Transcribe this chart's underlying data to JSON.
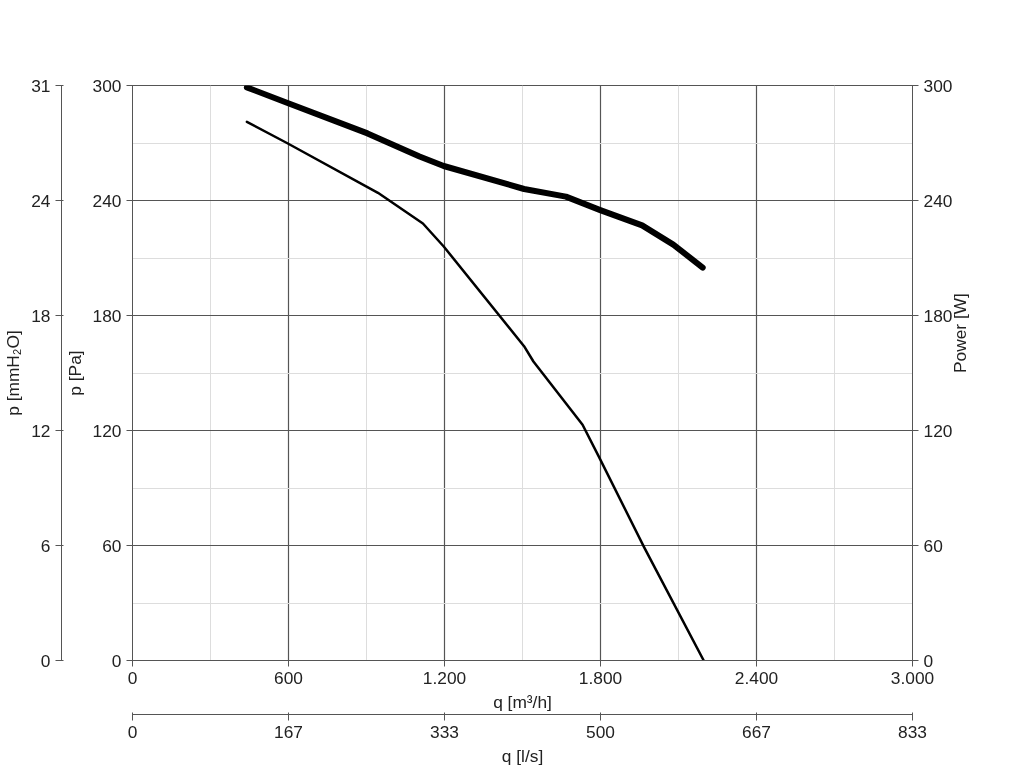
{
  "chart_data": {
    "type": "line",
    "xlabel": "q [m³/h]",
    "ylabel": "p [Pa]",
    "y2label": "Power [W]",
    "y3label": "p [mmH₂O]",
    "x2label": "q [l/s]",
    "xlim": [
      0,
      3000
    ],
    "xticks": [
      0,
      600,
      {
        "value": 1200,
        "label": "1.200"
      },
      {
        "value": 1800,
        "label": "1.800"
      },
      {
        "value": 2400,
        "label": "2.400"
      },
      {
        "value": 3000,
        "label": "3.000"
      }
    ],
    "ylim": [
      0,
      300
    ],
    "yticks": [
      0,
      60,
      120,
      180,
      240,
      300
    ],
    "y2lim": [
      0,
      300
    ],
    "y2ticks": [
      0,
      60,
      120,
      180,
      240,
      300
    ],
    "y3lim": [
      0,
      30.6
    ],
    "y3ticks": [
      0,
      {
        "value": 6.12,
        "label": "6"
      },
      {
        "value": 12.24,
        "label": "12"
      },
      {
        "value": 18.36,
        "label": "18"
      },
      {
        "value": 24.48,
        "label": "24"
      },
      {
        "value": 30.6,
        "label": "31"
      }
    ],
    "x2lim": [
      0,
      833.3
    ],
    "x2ticks": [
      0,
      {
        "value": 166.7,
        "label": "167"
      },
      {
        "value": 333.3,
        "label": "333"
      },
      {
        "value": 500,
        "label": "500"
      },
      {
        "value": 666.7,
        "label": "667"
      },
      {
        "value": 833.3,
        "label": "833"
      }
    ],
    "grid": true,
    "marker": "none",
    "line_style": "solid",
    "series": [
      {
        "color": "#000000",
        "x": [
          440,
          594,
          944,
          1117,
          1197,
          1506,
          1542,
          1731,
          1795,
          1968,
          2197
        ],
        "values": [
          281,
          270,
          244,
          228,
          216,
          164,
          156,
          123,
          106,
          59,
          0
        ]
      },
      {
        "color": "#000000",
        "x": [
          440,
          594,
          904,
          1104,
          1197,
          1506,
          1667,
          1799,
          1960,
          2080,
          2193
        ],
        "values": [
          299,
          291,
          275,
          263,
          258,
          246,
          242,
          235,
          227,
          217,
          205
        ]
      }
    ]
  }
}
